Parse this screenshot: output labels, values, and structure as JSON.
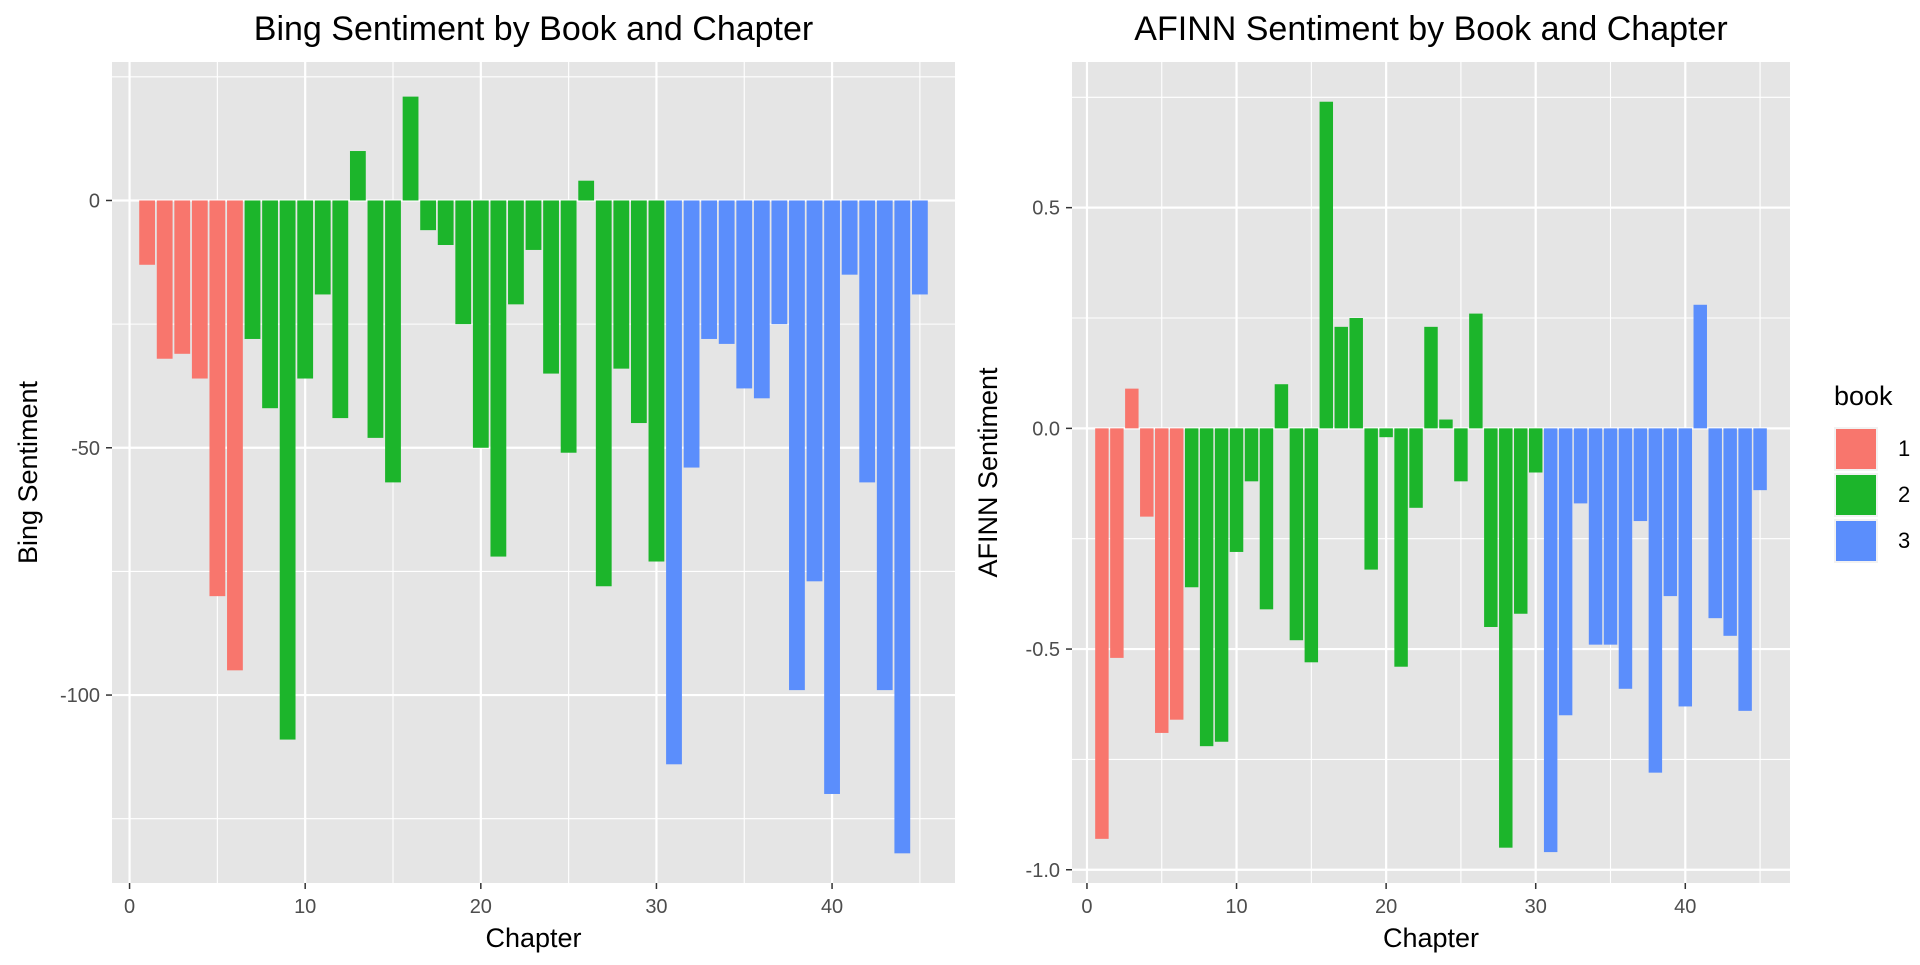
{
  "chart_data": [
    {
      "type": "bar",
      "title": "Bing Sentiment by Book and Chapter",
      "xlabel": "Chapter",
      "ylabel": "Bing Sentiment",
      "xlim": [
        -1,
        47
      ],
      "ylim": [
        -138,
        28
      ],
      "x_ticks": [
        0,
        10,
        20,
        30,
        40
      ],
      "y_ticks": [
        0,
        -50,
        -100
      ],
      "grid": true,
      "series": [
        {
          "name": "1",
          "x": [
            1,
            2,
            3,
            4,
            5,
            6
          ],
          "values": [
            -13,
            -32,
            -31,
            -36,
            -80,
            -95
          ]
        },
        {
          "name": "2",
          "x": [
            7,
            8,
            9,
            10,
            11,
            12,
            13,
            14,
            15,
            16,
            17,
            18,
            19,
            20,
            21,
            22,
            23,
            24,
            25,
            26,
            27,
            28,
            29,
            30
          ],
          "values": [
            -28,
            -42,
            -109,
            -36,
            -19,
            -44,
            10,
            -48,
            -57,
            21,
            -6,
            -9,
            -25,
            -50,
            -72,
            -21,
            -10,
            -35,
            -51,
            4,
            -78,
            -34,
            -45,
            -73
          ]
        },
        {
          "name": "3",
          "x": [
            31,
            32,
            33,
            34,
            35,
            36,
            37,
            38,
            39,
            40,
            41,
            42,
            43,
            44,
            45
          ],
          "values": [
            -114,
            -54,
            -28,
            -29,
            -38,
            -40,
            -25,
            -99,
            -77,
            -120,
            -15,
            -57,
            -99,
            -132,
            -19
          ]
        }
      ]
    },
    {
      "type": "bar",
      "title": "AFINN Sentiment by Book and Chapter",
      "xlabel": "Chapter",
      "ylabel": "AFINN Sentiment",
      "xlim": [
        -1,
        47
      ],
      "ylim": [
        -1.03,
        0.83
      ],
      "x_ticks": [
        0,
        10,
        20,
        30,
        40
      ],
      "y_ticks": [
        0.5,
        0.0,
        -0.5,
        -1.0
      ],
      "y_tick_labels": [
        "0.5",
        "0.0",
        "-0.5",
        "-1.0"
      ],
      "grid": true,
      "series": [
        {
          "name": "1",
          "x": [
            1,
            2,
            3,
            4,
            5,
            6
          ],
          "values": [
            -0.93,
            -0.52,
            0.09,
            -0.2,
            -0.69,
            -0.66
          ]
        },
        {
          "name": "2",
          "x": [
            7,
            8,
            9,
            10,
            11,
            12,
            13,
            14,
            15,
            16,
            17,
            18,
            19,
            20,
            21,
            22,
            23,
            24,
            25,
            26,
            27,
            28,
            29,
            30
          ],
          "values": [
            -0.36,
            -0.72,
            -0.71,
            -0.28,
            -0.12,
            -0.41,
            0.1,
            -0.48,
            -0.53,
            0.74,
            0.23,
            0.25,
            -0.32,
            -0.02,
            -0.54,
            -0.18,
            0.23,
            0.02,
            -0.12,
            0.26,
            -0.45,
            -0.95,
            -0.42,
            -0.1
          ]
        },
        {
          "name": "3",
          "x": [
            31,
            32,
            33,
            34,
            35,
            36,
            37,
            38,
            39,
            40,
            41,
            42,
            43,
            44,
            45
          ],
          "values": [
            -0.96,
            -0.65,
            -0.17,
            -0.49,
            -0.49,
            -0.59,
            -0.21,
            -0.78,
            -0.38,
            -0.63,
            0.28,
            -0.43,
            -0.47,
            -0.64,
            -0.14
          ]
        }
      ]
    }
  ],
  "legend": {
    "title": "book",
    "placement": "right",
    "items": [
      {
        "label": "1",
        "color": "#F8766D"
      },
      {
        "label": "2",
        "color": "#1CB52B"
      },
      {
        "label": "3",
        "color": "#5B8EFC"
      }
    ]
  },
  "colors": {
    "panel_background": "#E5E5E5",
    "grid": "#FFFFFF",
    "book1": "#F8766D",
    "book2": "#1CB52B",
    "book3": "#5B8EFC"
  }
}
